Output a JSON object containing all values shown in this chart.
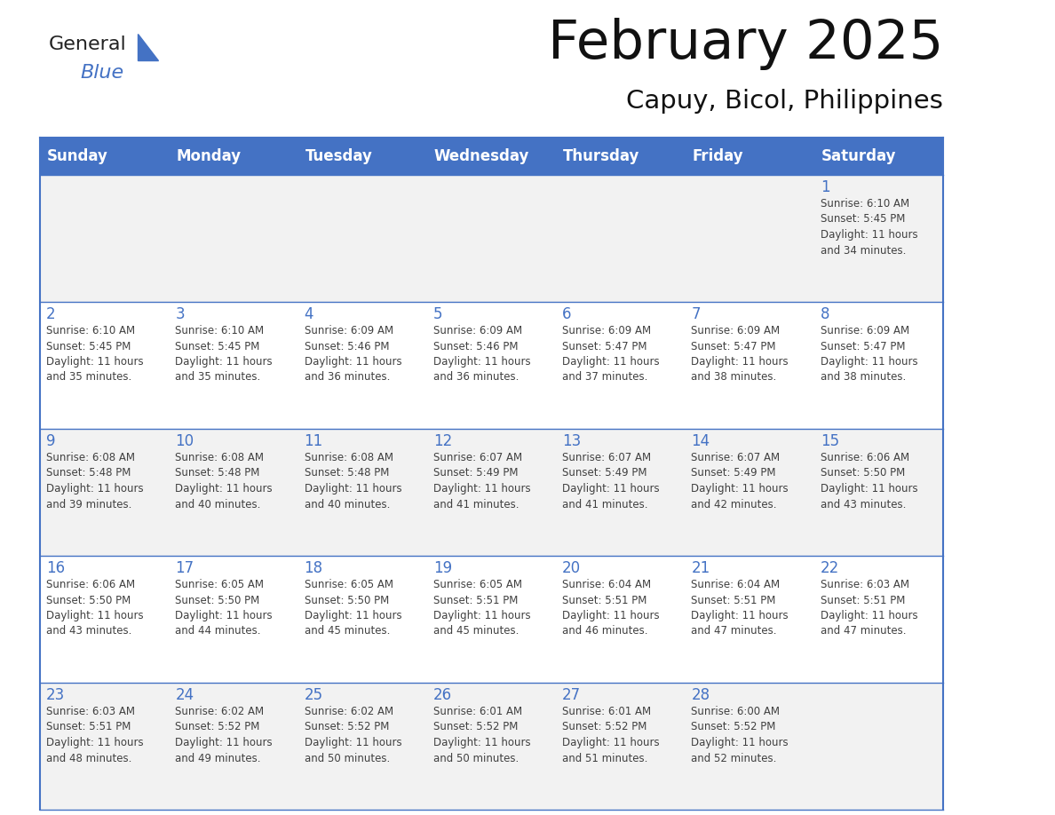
{
  "title": "February 2025",
  "subtitle": "Capuy, Bicol, Philippines",
  "days_of_week": [
    "Sunday",
    "Monday",
    "Tuesday",
    "Wednesday",
    "Thursday",
    "Friday",
    "Saturday"
  ],
  "header_bg": "#4472C4",
  "header_text": "#FFFFFF",
  "cell_bg_odd": "#F2F2F2",
  "cell_bg_even": "#FFFFFF",
  "line_color": "#4472C4",
  "title_color": "#111111",
  "subtitle_color": "#111111",
  "day_number_color": "#4472C4",
  "info_color": "#404040",
  "logo_general_color": "#222222",
  "logo_blue_color": "#4472C4",
  "logo_triangle_color": "#4472C4",
  "calendar": [
    [
      null,
      null,
      null,
      null,
      null,
      null,
      1
    ],
    [
      2,
      3,
      4,
      5,
      6,
      7,
      8
    ],
    [
      9,
      10,
      11,
      12,
      13,
      14,
      15
    ],
    [
      16,
      17,
      18,
      19,
      20,
      21,
      22
    ],
    [
      23,
      24,
      25,
      26,
      27,
      28,
      null
    ]
  ],
  "sun_data": {
    "1": {
      "rise": "6:10 AM",
      "set": "5:45 PM",
      "day": "11 hours\nand 34 minutes."
    },
    "2": {
      "rise": "6:10 AM",
      "set": "5:45 PM",
      "day": "11 hours\nand 35 minutes."
    },
    "3": {
      "rise": "6:10 AM",
      "set": "5:45 PM",
      "day": "11 hours\nand 35 minutes."
    },
    "4": {
      "rise": "6:09 AM",
      "set": "5:46 PM",
      "day": "11 hours\nand 36 minutes."
    },
    "5": {
      "rise": "6:09 AM",
      "set": "5:46 PM",
      "day": "11 hours\nand 36 minutes."
    },
    "6": {
      "rise": "6:09 AM",
      "set": "5:47 PM",
      "day": "11 hours\nand 37 minutes."
    },
    "7": {
      "rise": "6:09 AM",
      "set": "5:47 PM",
      "day": "11 hours\nand 38 minutes."
    },
    "8": {
      "rise": "6:09 AM",
      "set": "5:47 PM",
      "day": "11 hours\nand 38 minutes."
    },
    "9": {
      "rise": "6:08 AM",
      "set": "5:48 PM",
      "day": "11 hours\nand 39 minutes."
    },
    "10": {
      "rise": "6:08 AM",
      "set": "5:48 PM",
      "day": "11 hours\nand 40 minutes."
    },
    "11": {
      "rise": "6:08 AM",
      "set": "5:48 PM",
      "day": "11 hours\nand 40 minutes."
    },
    "12": {
      "rise": "6:07 AM",
      "set": "5:49 PM",
      "day": "11 hours\nand 41 minutes."
    },
    "13": {
      "rise": "6:07 AM",
      "set": "5:49 PM",
      "day": "11 hours\nand 41 minutes."
    },
    "14": {
      "rise": "6:07 AM",
      "set": "5:49 PM",
      "day": "11 hours\nand 42 minutes."
    },
    "15": {
      "rise": "6:06 AM",
      "set": "5:50 PM",
      "day": "11 hours\nand 43 minutes."
    },
    "16": {
      "rise": "6:06 AM",
      "set": "5:50 PM",
      "day": "11 hours\nand 43 minutes."
    },
    "17": {
      "rise": "6:05 AM",
      "set": "5:50 PM",
      "day": "11 hours\nand 44 minutes."
    },
    "18": {
      "rise": "6:05 AM",
      "set": "5:50 PM",
      "day": "11 hours\nand 45 minutes."
    },
    "19": {
      "rise": "6:05 AM",
      "set": "5:51 PM",
      "day": "11 hours\nand 45 minutes."
    },
    "20": {
      "rise": "6:04 AM",
      "set": "5:51 PM",
      "day": "11 hours\nand 46 minutes."
    },
    "21": {
      "rise": "6:04 AM",
      "set": "5:51 PM",
      "day": "11 hours\nand 47 minutes."
    },
    "22": {
      "rise": "6:03 AM",
      "set": "5:51 PM",
      "day": "11 hours\nand 47 minutes."
    },
    "23": {
      "rise": "6:03 AM",
      "set": "5:51 PM",
      "day": "11 hours\nand 48 minutes."
    },
    "24": {
      "rise": "6:02 AM",
      "set": "5:52 PM",
      "day": "11 hours\nand 49 minutes."
    },
    "25": {
      "rise": "6:02 AM",
      "set": "5:52 PM",
      "day": "11 hours\nand 50 minutes."
    },
    "26": {
      "rise": "6:01 AM",
      "set": "5:52 PM",
      "day": "11 hours\nand 50 minutes."
    },
    "27": {
      "rise": "6:01 AM",
      "set": "5:52 PM",
      "day": "11 hours\nand 51 minutes."
    },
    "28": {
      "rise": "6:00 AM",
      "set": "5:52 PM",
      "day": "11 hours\nand 52 minutes."
    }
  }
}
